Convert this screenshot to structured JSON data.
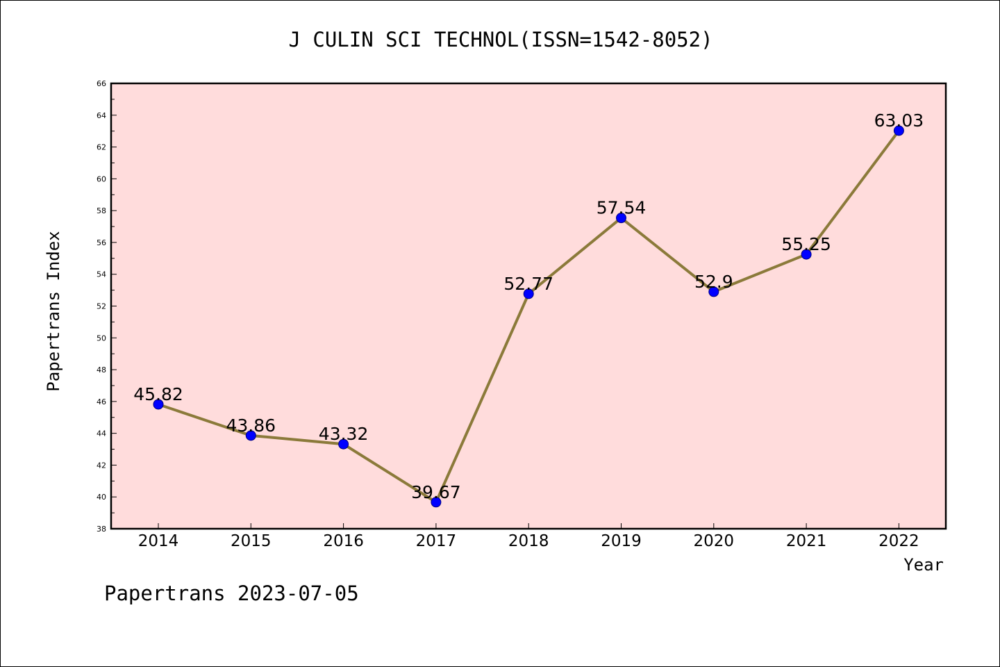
{
  "chart_data": {
    "type": "line",
    "title": "J CULIN SCI TECHNOL(ISSN=1542-8052)",
    "xlabel": "Year",
    "ylabel": "Papertrans Index",
    "categories": [
      "2014",
      "2015",
      "2016",
      "2017",
      "2018",
      "2019",
      "2020",
      "2021",
      "2022"
    ],
    "series": [
      {
        "values": [
          45.82,
          43.86,
          43.32,
          39.67,
          52.77,
          57.54,
          52.9,
          55.25,
          63.03
        ],
        "labels": [
          "45.82",
          "43.86",
          "43.32",
          "39.67",
          "52.77",
          "57.54",
          "52.9",
          "55.25",
          "63.03"
        ]
      }
    ],
    "ylim": [
      38,
      66
    ],
    "yticks": [
      "38",
      "40",
      "42",
      "44",
      "46",
      "48",
      "50",
      "52",
      "54",
      "56",
      "58",
      "60",
      "62",
      "64",
      "66"
    ],
    "grid": false,
    "footer": "Papertrans 2023-07-05",
    "colors": {
      "plot_background": "#ffdcdc",
      "line": "#8b7a3a",
      "marker": "#0000ff",
      "marker_edge": "#000080"
    }
  }
}
